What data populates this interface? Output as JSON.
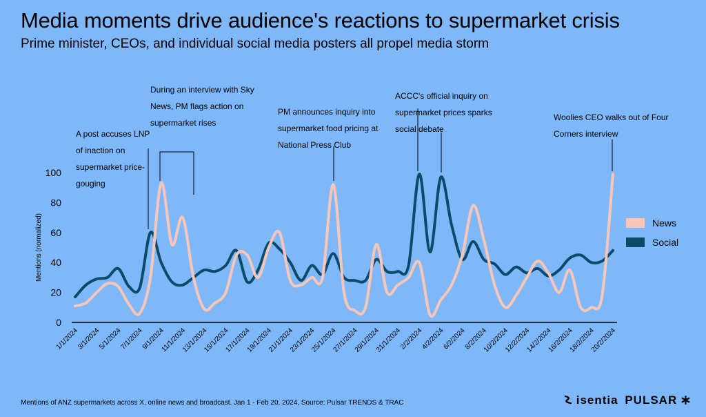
{
  "title": "Media moments drive audience's reactions to supermarket crisis",
  "subtitle": "Prime minister, CEOs, and individual social media posters all propel media storm",
  "footer": "Mentions of ANZ supermarkets across X, online news and broadcast. Jan 1 - Feb 20, 2024, Source: Pulsar TRENDS & TRAC",
  "brand": {
    "isentia": "isentia",
    "pulsar": "PULSAR",
    "isentia_icon": "wave-icon",
    "pulsar_icon": "asterisk-icon"
  },
  "chart_data": {
    "type": "line",
    "ylabel": "Mentions (normalized)",
    "xlabel": "",
    "ylim": [
      0,
      100
    ],
    "yticks": [
      0,
      20,
      40,
      60,
      80,
      100
    ],
    "grid": false,
    "legend_position": "right",
    "x": [
      "1/1/2024",
      "2/1/2024",
      "3/1/2024",
      "4/1/2024",
      "5/1/2024",
      "6/1/2024",
      "7/1/2024",
      "8/1/2024",
      "9/1/2024",
      "10/1/2024",
      "11/1/2024",
      "12/1/2024",
      "13/1/2024",
      "14/1/2024",
      "15/1/2024",
      "16/1/2024",
      "17/1/2024",
      "18/1/2024",
      "19/1/2024",
      "20/1/2024",
      "21/1/2024",
      "22/1/2024",
      "23/1/2024",
      "24/1/2024",
      "25/1/2024",
      "26/1/2024",
      "27/1/2024",
      "28/1/2024",
      "29/1/2024",
      "30/1/2024",
      "31/1/2024",
      "1/2/2024",
      "2/2/2024",
      "3/2/2024",
      "4/2/2024",
      "5/2/2024",
      "6/2/2024",
      "7/2/2024",
      "8/2/2024",
      "9/2/2024",
      "10/2/2024",
      "11/2/2024",
      "12/2/2024",
      "13/2/2024",
      "14/2/2024",
      "15/2/2024",
      "16/2/2024",
      "17/2/2024",
      "18/2/2024",
      "19/2/2024",
      "20/2/2024"
    ],
    "xtick_labels": [
      "1/1/2024",
      "3/1/2024",
      "5/1/2024",
      "7/1/2024",
      "9/1/2024",
      "11/1/2024",
      "13/1/2024",
      "15/1/2024",
      "17/1/2024",
      "19/1/2024",
      "21/1/2024",
      "23/1/2024",
      "25/1/2024",
      "27/1/2024",
      "29/1/2024",
      "31/1/2024",
      "2/2/2024",
      "4/2/2024",
      "6/2/2024",
      "8/2/2024",
      "10/2/2024",
      "12/2/2024",
      "14/2/2024",
      "16/2/2024",
      "18/2/2024",
      "20/2/2024"
    ],
    "series": [
      {
        "name": "News",
        "color": "#f8c6b8",
        "values": [
          11,
          13,
          20,
          26,
          24,
          12,
          6,
          30,
          93,
          52,
          70,
          30,
          9,
          13,
          20,
          45,
          45,
          30,
          50,
          60,
          28,
          25,
          30,
          30,
          92,
          20,
          8,
          10,
          52,
          20,
          25,
          30,
          40,
          5,
          15,
          25,
          45,
          78,
          55,
          25,
          10,
          18,
          30,
          41,
          33,
          20,
          35,
          10,
          10,
          18,
          99
        ]
      },
      {
        "name": "Social",
        "color": "#0b4a6b",
        "values": [
          17,
          25,
          29,
          30,
          36,
          24,
          23,
          60,
          40,
          27,
          25,
          30,
          35,
          34,
          38,
          48,
          27,
          35,
          53,
          49,
          40,
          28,
          38,
          32,
          46,
          30,
          28,
          28,
          42,
          34,
          34,
          38,
          99,
          47,
          97,
          65,
          42,
          54,
          42,
          39,
          32,
          37,
          33,
          36,
          31,
          35,
          43,
          45,
          40,
          41,
          48
        ]
      }
    ],
    "annotations": [
      {
        "text": "A post accuses LNP of inaction on supermarket price-gouging",
        "x": "8/1/2024"
      },
      {
        "text": "During an interview with Sky News, PM flags action on supermarket rises",
        "x": "9/1/2024"
      },
      {
        "text": "PM announces inquiry into supermarket food pricing at National Press Club",
        "x": "25/1/2024"
      },
      {
        "text": "ACCC's official inquiry on supermarket prices sparks social debate",
        "x": "2/2/2024"
      },
      {
        "text": "Woolies CEO walks out of Four Corners interview",
        "x": "20/2/2024"
      }
    ]
  }
}
